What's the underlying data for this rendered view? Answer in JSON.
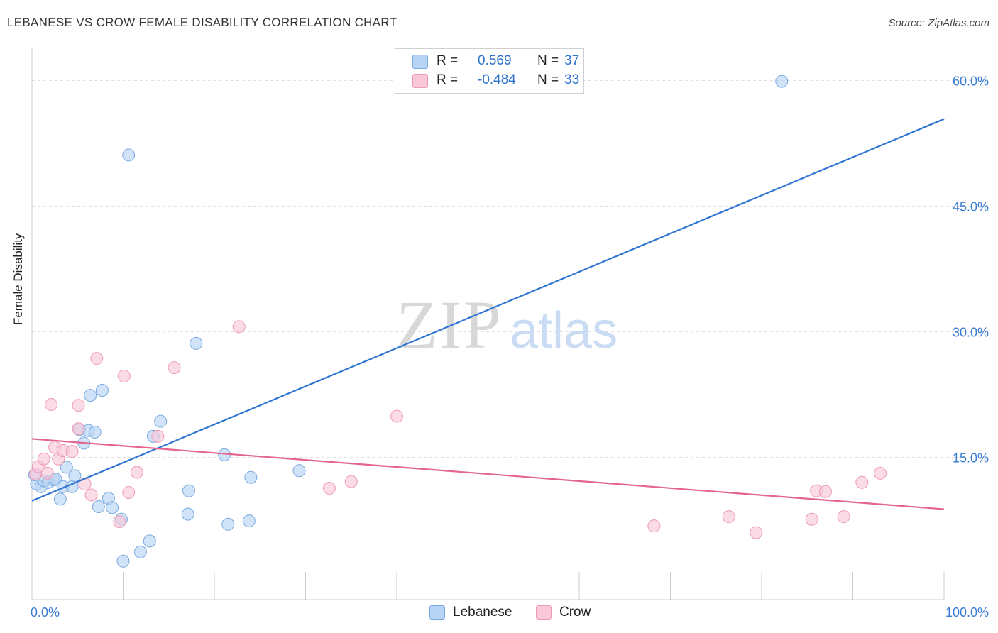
{
  "title": "LEBANESE VS CROW FEMALE DISABILITY CORRELATION CHART",
  "source": "Source: ZipAtlas.com",
  "watermark": {
    "zip": "ZIP",
    "atlas": "atlas"
  },
  "legend": {
    "rows": [
      {
        "r_label": "R =",
        "r_value": "0.569",
        "n_label": "N =",
        "n_value": "37",
        "color": "#a9c8f2"
      },
      {
        "r_label": "R =",
        "r_value": "-0.484",
        "n_label": "N =",
        "n_value": "33",
        "color": "#f7bcd0"
      }
    ]
  },
  "bottom_legend": {
    "lebanese": "Lebanese",
    "crow": "Crow"
  },
  "colors": {
    "lebanese_fill": "#b8d4f5",
    "lebanese_stroke": "#7aa9df",
    "lebanese_line": "#2f76d2",
    "crow_fill": "#f9c8d8",
    "crow_stroke": "#ee9ab6",
    "crow_line": "#e4648f",
    "tick_label": "#3a7bd5",
    "grid": "#dddddd"
  },
  "chart_data": {
    "type": "scatter",
    "title": "LEBANESE VS CROW FEMALE DISABILITY CORRELATION CHART",
    "xlabel": "",
    "ylabel": "Female Disability",
    "xlim": [
      0,
      100
    ],
    "ylim": [
      -2,
      63
    ],
    "x_tick_labels": [
      "0.0%",
      "100.0%"
    ],
    "y_ticks": [
      15,
      30,
      45,
      60
    ],
    "y_tick_labels": [
      "15.0%",
      "30.0%",
      "45.0%",
      "60.0%"
    ],
    "series": [
      {
        "name": "Lebanese",
        "R": 0.569,
        "N": 37,
        "trend": {
          "x": [
            0,
            100
          ],
          "y": [
            9.8,
            55.4
          ]
        },
        "points": [
          [
            0.5,
            11.8
          ],
          [
            1.0,
            11.5
          ],
          [
            1.3,
            12.2
          ],
          [
            1.8,
            12.0
          ],
          [
            2.4,
            12.3
          ],
          [
            2.6,
            12.4
          ],
          [
            3.1,
            10.0
          ],
          [
            3.4,
            11.5
          ],
          [
            3.8,
            13.8
          ],
          [
            4.4,
            11.5
          ],
          [
            4.7,
            12.8
          ],
          [
            5.2,
            18.3
          ],
          [
            5.7,
            16.7
          ],
          [
            6.2,
            18.2
          ],
          [
            6.4,
            22.4
          ],
          [
            6.9,
            18.0
          ],
          [
            7.3,
            9.1
          ],
          [
            7.7,
            23.0
          ],
          [
            8.4,
            10.1
          ],
          [
            8.8,
            9.0
          ],
          [
            9.8,
            7.6
          ],
          [
            10.0,
            2.6
          ],
          [
            10.6,
            51.1
          ],
          [
            11.9,
            3.7
          ],
          [
            12.9,
            5.0
          ],
          [
            13.3,
            17.5
          ],
          [
            14.1,
            19.3
          ],
          [
            17.2,
            11.0
          ],
          [
            17.1,
            8.2
          ],
          [
            18.0,
            28.6
          ],
          [
            21.1,
            15.3
          ],
          [
            21.5,
            7.0
          ],
          [
            23.8,
            7.4
          ],
          [
            24.0,
            12.6
          ],
          [
            29.3,
            13.4
          ],
          [
            82.2,
            59.9
          ],
          [
            0.3,
            12.9
          ]
        ]
      },
      {
        "name": "Crow",
        "R": -0.484,
        "N": 33,
        "trend": {
          "x": [
            0,
            100
          ],
          "y": [
            17.2,
            8.8
          ]
        },
        "points": [
          [
            0.4,
            13.0
          ],
          [
            0.7,
            13.9
          ],
          [
            1.3,
            14.8
          ],
          [
            1.7,
            13.1
          ],
          [
            2.1,
            21.3
          ],
          [
            2.5,
            16.2
          ],
          [
            2.9,
            14.8
          ],
          [
            3.4,
            15.8
          ],
          [
            4.4,
            15.7
          ],
          [
            5.1,
            21.2
          ],
          [
            5.1,
            18.4
          ],
          [
            5.8,
            11.8
          ],
          [
            6.5,
            10.5
          ],
          [
            7.1,
            26.8
          ],
          [
            9.6,
            7.3
          ],
          [
            10.1,
            24.7
          ],
          [
            10.6,
            10.8
          ],
          [
            11.5,
            13.2
          ],
          [
            13.8,
            17.5
          ],
          [
            15.6,
            25.7
          ],
          [
            22.7,
            30.6
          ],
          [
            32.6,
            11.3
          ],
          [
            35.0,
            12.1
          ],
          [
            40.0,
            19.9
          ],
          [
            68.2,
            6.8
          ],
          [
            76.4,
            7.9
          ],
          [
            79.4,
            6.0
          ],
          [
            85.5,
            7.6
          ],
          [
            86.0,
            11.0
          ],
          [
            87.0,
            10.9
          ],
          [
            89.0,
            7.9
          ],
          [
            91.0,
            12.0
          ],
          [
            93.0,
            13.1
          ]
        ]
      }
    ]
  }
}
